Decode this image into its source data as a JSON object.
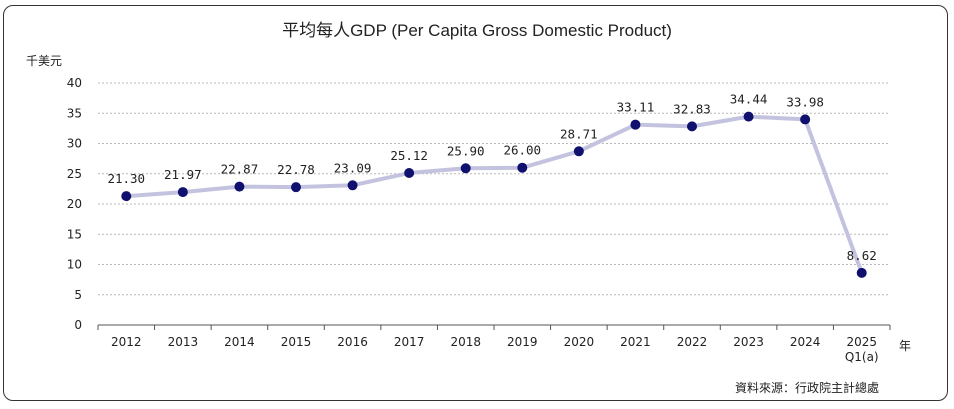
{
  "chart_data": {
    "type": "line",
    "title": "平均每人GDP (Per Capita Gross Domestic Product)",
    "ylabel": "千美元",
    "xlabel": "年",
    "categories": [
      "2012",
      "2013",
      "2014",
      "2015",
      "2016",
      "2017",
      "2018",
      "2019",
      "2020",
      "2021",
      "2022",
      "2023",
      "2024",
      "2025\nQ1(a)"
    ],
    "series": [
      {
        "name": "平均每人GDP",
        "values": [
          21.3,
          21.97,
          22.87,
          22.78,
          23.09,
          25.12,
          25.9,
          26.0,
          28.71,
          33.11,
          32.83,
          34.44,
          33.98,
          8.62
        ],
        "labels": [
          "21.30",
          "21.97",
          "22.87",
          "22.78",
          "23.09",
          "25.12",
          "25.90",
          "26.00",
          "28.71",
          "33.11",
          "32.83",
          "34.44",
          "33.98",
          "8.62"
        ]
      }
    ],
    "ylim": [
      0,
      40
    ],
    "yticks": [
      "0",
      "5",
      "10",
      "15",
      "20",
      "25",
      "30",
      "35",
      "40"
    ],
    "grid": true,
    "line_color": "#c3c3e0",
    "marker_color": "#10106e",
    "source": "資料來源：行政院主計總處"
  }
}
